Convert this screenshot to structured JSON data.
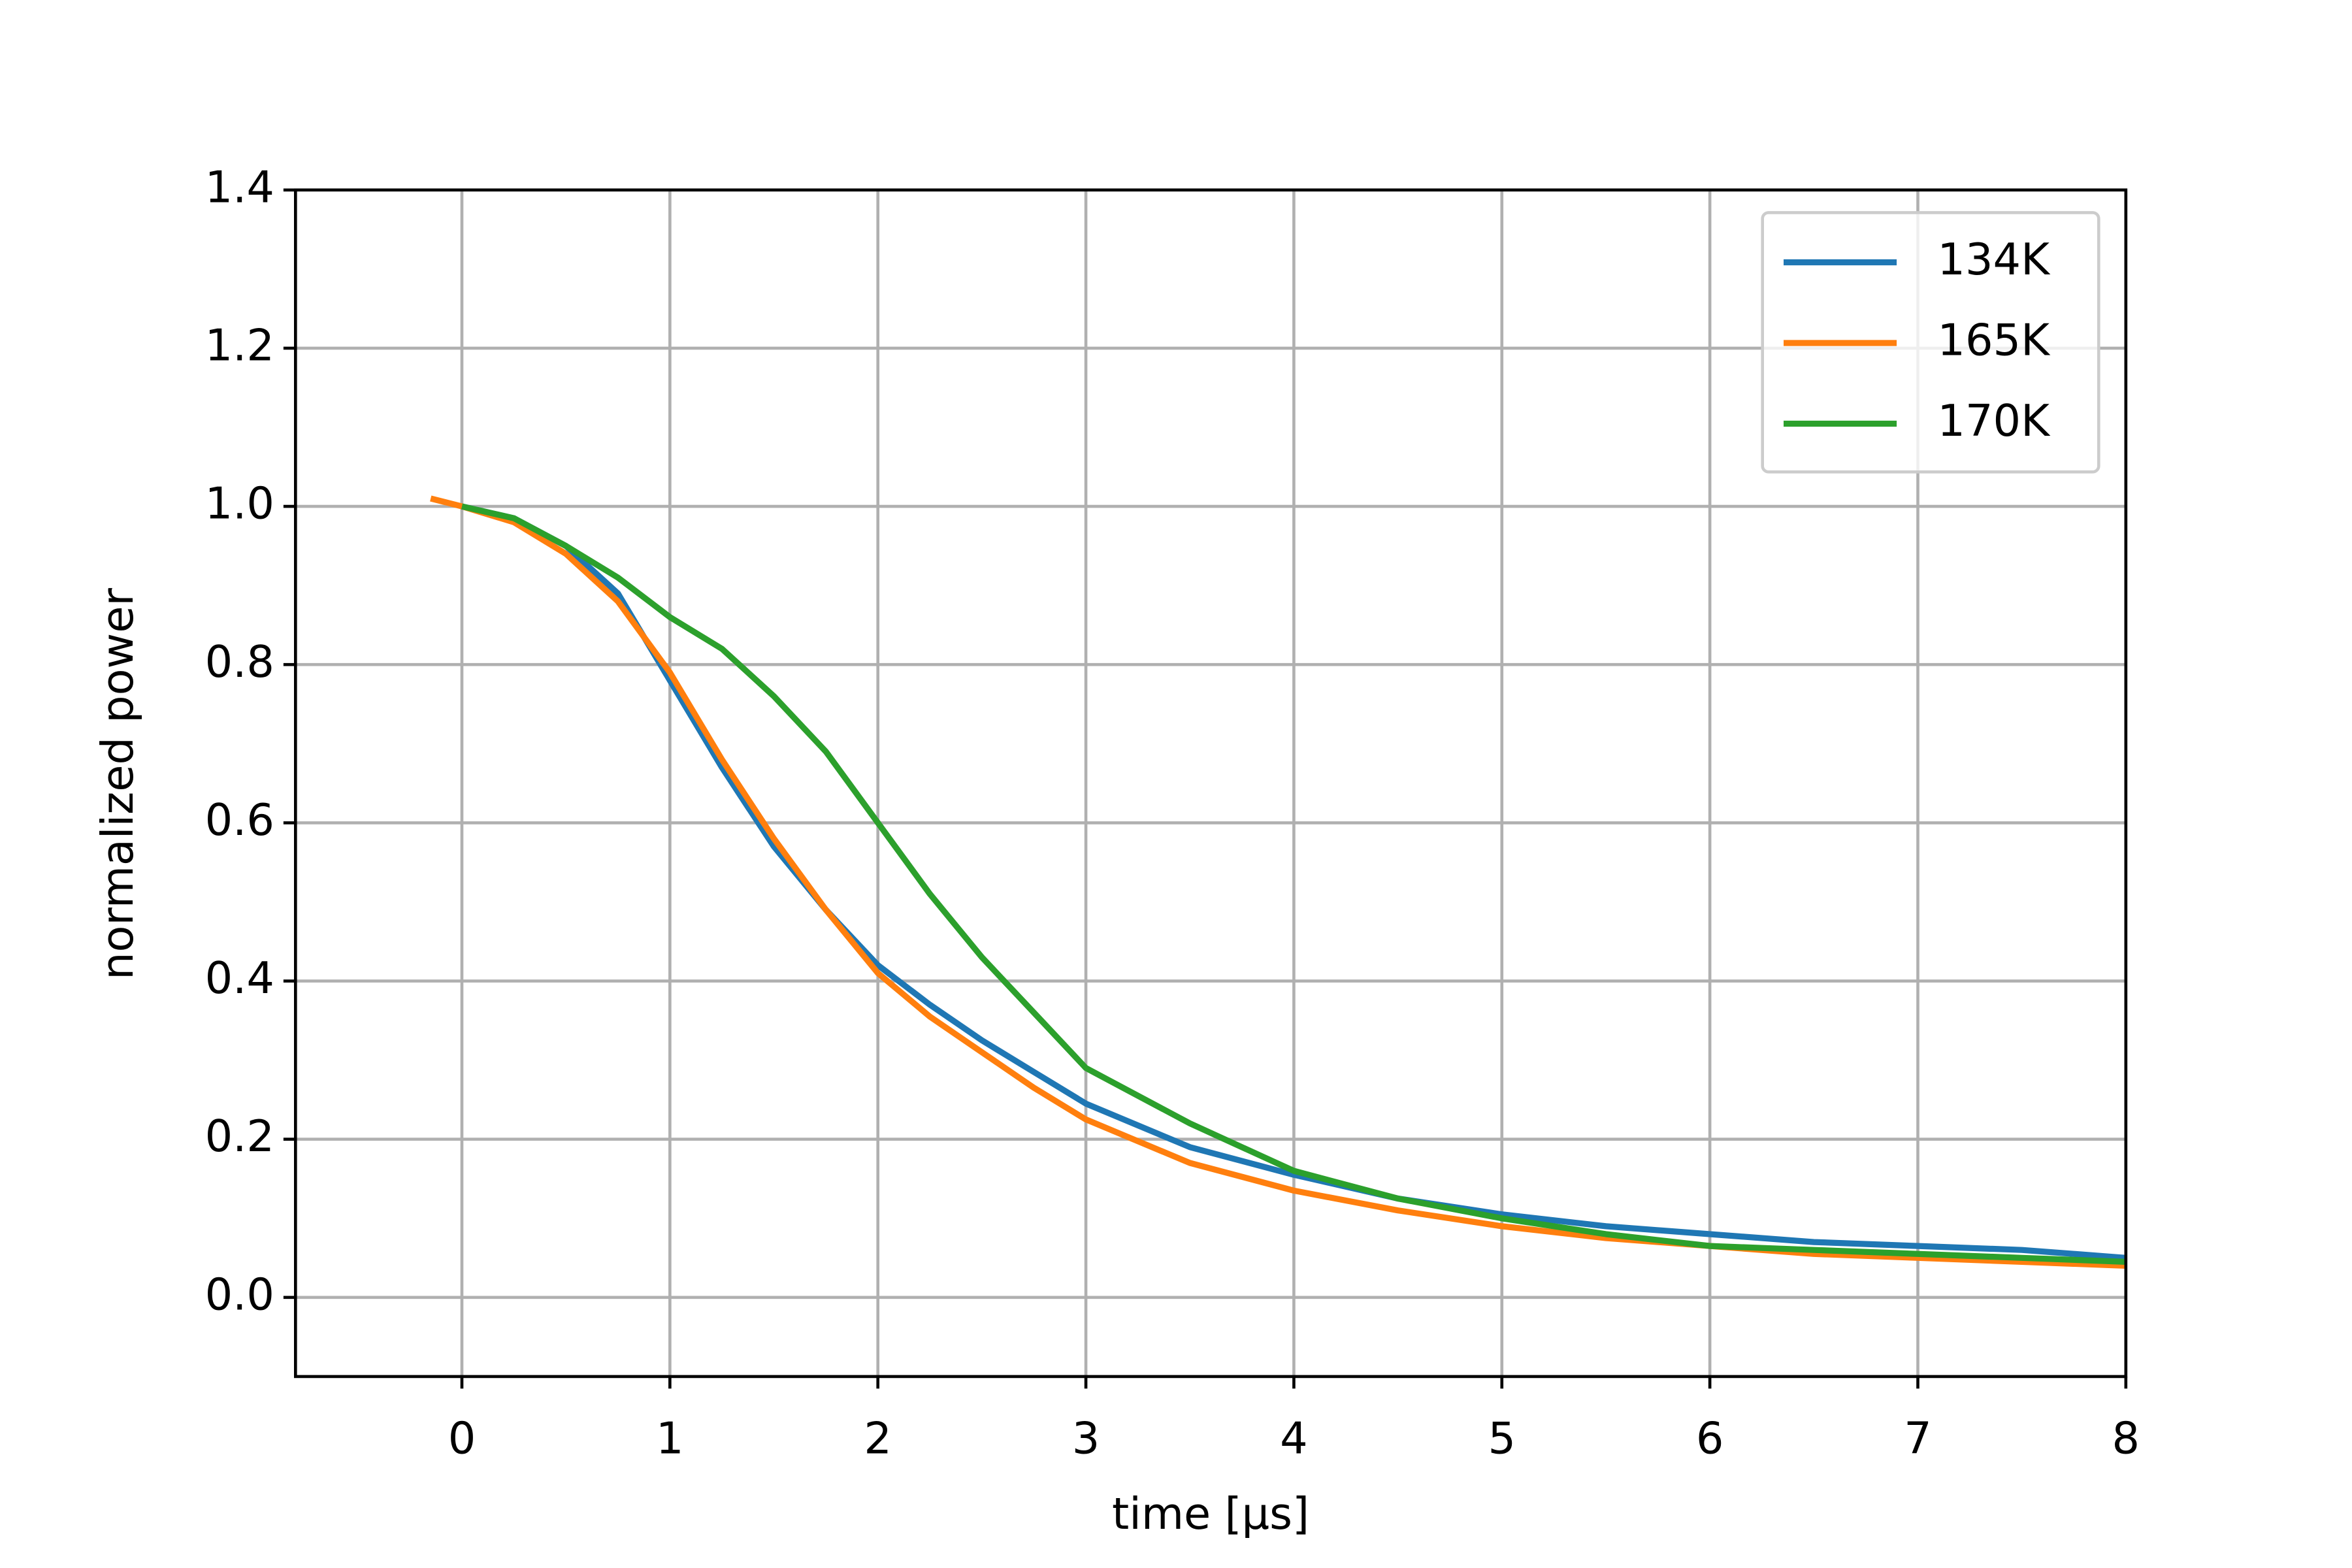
{
  "chart_data": {
    "type": "line",
    "xlabel": "time [μs]",
    "ylabel": "normalized power",
    "x": [
      -0.15,
      0,
      0.25,
      0.5,
      0.75,
      1,
      1.25,
      1.5,
      1.75,
      2,
      2.25,
      2.5,
      2.75,
      3,
      3.5,
      4,
      4.5,
      5,
      5.5,
      6,
      6.5,
      7,
      7.5,
      8
    ],
    "series": [
      {
        "name": "134K",
        "color": "#1f77b4",
        "values": [
          null,
          1.0,
          0.985,
          0.95,
          0.89,
          0.78,
          0.67,
          0.57,
          0.49,
          0.42,
          0.37,
          0.325,
          0.285,
          0.245,
          0.19,
          0.155,
          0.125,
          0.105,
          0.09,
          0.08,
          0.07,
          0.065,
          0.06,
          0.05
        ]
      },
      {
        "name": "165K",
        "color": "#ff7f0e",
        "values": [
          1.01,
          1.0,
          0.98,
          0.94,
          0.88,
          0.79,
          0.68,
          0.58,
          0.49,
          0.41,
          0.355,
          0.31,
          0.265,
          0.225,
          0.17,
          0.135,
          0.11,
          0.09,
          0.075,
          0.065,
          0.055,
          0.05,
          0.045,
          0.04
        ]
      },
      {
        "name": "170K",
        "color": "#2ca02c",
        "values": [
          null,
          1.0,
          0.985,
          0.95,
          0.91,
          0.86,
          0.82,
          0.76,
          0.69,
          0.6,
          0.51,
          0.43,
          0.36,
          0.29,
          0.22,
          0.16,
          0.125,
          0.1,
          0.08,
          0.065,
          0.06,
          0.055,
          0.05,
          0.045
        ]
      }
    ],
    "xlim": [
      -0.8,
      8
    ],
    "ylim": [
      -0.1,
      1.4
    ],
    "xticks": [
      0,
      1,
      2,
      3,
      4,
      5,
      6,
      7,
      8
    ],
    "yticks": [
      {
        "value": 0,
        "label": "0.0"
      },
      0.2,
      0.4,
      0.6,
      0.8,
      {
        "value": 1,
        "label": "1.0"
      },
      1.2,
      1.4
    ],
    "grid": true,
    "legend": "upper right"
  }
}
